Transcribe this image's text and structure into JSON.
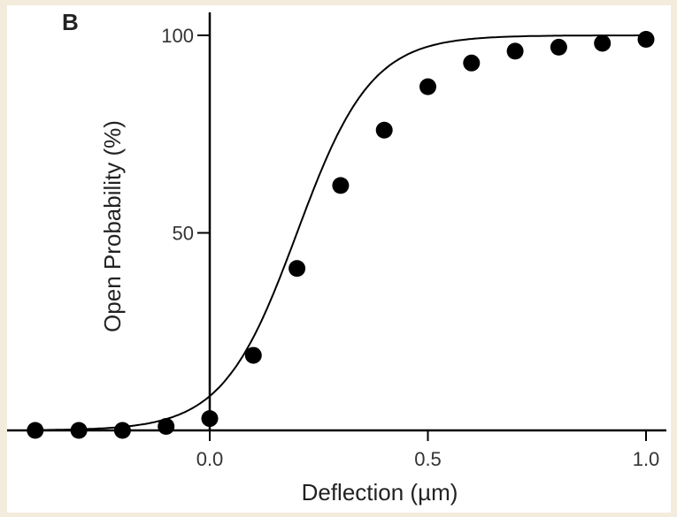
{
  "panel_label": "B",
  "chart_data": {
    "type": "scatter",
    "title": "",
    "xlabel": "Deflection (µm)",
    "ylabel": "Open Probability (%)",
    "xlim": [
      -0.4,
      1.0
    ],
    "ylim": [
      0,
      100
    ],
    "x_ticks": [
      0.0,
      0.5,
      1.0
    ],
    "x_tick_labels": [
      "0.0",
      "0.5",
      "1.0"
    ],
    "y_ticks": [
      50,
      100
    ],
    "y_tick_labels": [
      "50",
      "100"
    ],
    "grid": false,
    "series": [
      {
        "points": [
          {
            "x": -0.4,
            "y": 0
          },
          {
            "x": -0.3,
            "y": 0
          },
          {
            "x": -0.2,
            "y": 0
          },
          {
            "x": -0.1,
            "y": 1
          },
          {
            "x": 0.0,
            "y": 3
          },
          {
            "x": 0.1,
            "y": 19
          },
          {
            "x": 0.2,
            "y": 41
          },
          {
            "x": 0.3,
            "y": 62
          },
          {
            "x": 0.4,
            "y": 76
          },
          {
            "x": 0.5,
            "y": 87
          },
          {
            "x": 0.6,
            "y": 93
          },
          {
            "x": 0.7,
            "y": 96
          },
          {
            "x": 0.8,
            "y": 97
          },
          {
            "x": 0.9,
            "y": 98
          },
          {
            "x": 1.0,
            "y": 99
          }
        ]
      }
    ],
    "fit_curve": {
      "type": "boltzmann",
      "x_half": 0.2,
      "slope": 0.085
    },
    "colors": {
      "points": "#000000",
      "curve": "#000000",
      "axes": "#000000"
    }
  }
}
